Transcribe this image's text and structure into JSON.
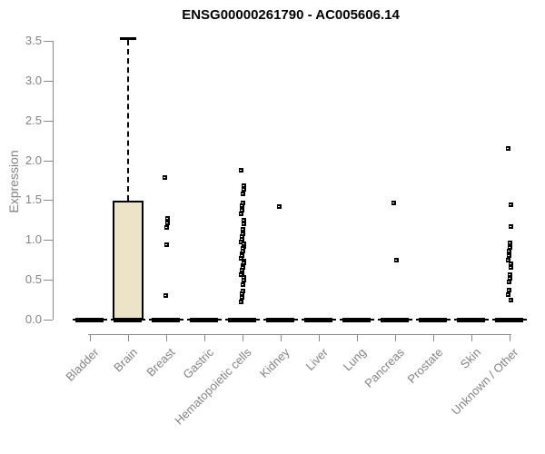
{
  "chart_data": {
    "type": "boxplot",
    "title": "ENSG00000261790 - AC005606.14",
    "ylabel": "Expression",
    "ylim": [
      0,
      3.5
    ],
    "yticks": [
      0.0,
      0.5,
      1.0,
      1.5,
      2.0,
      2.5,
      3.0,
      3.5
    ],
    "categories": [
      "Bladder",
      "Brain",
      "Breast",
      "Gastric",
      "Hematopoietic cells",
      "Kidney",
      "Liver",
      "Lung",
      "Pancreas",
      "Prostate",
      "Skin",
      "Unknown / Other"
    ],
    "boxes": [
      {
        "category": "Bladder",
        "median": 0,
        "q1": 0,
        "q3": 0,
        "whisker_low": 0,
        "whisker_high": 0
      },
      {
        "category": "Brain",
        "median": 0,
        "q1": 0,
        "q3": 1.49,
        "whisker_low": 0,
        "whisker_high": 3.53
      },
      {
        "category": "Breast",
        "median": 0,
        "q1": 0,
        "q3": 0,
        "whisker_low": 0,
        "whisker_high": 0
      },
      {
        "category": "Gastric",
        "median": 0,
        "q1": 0,
        "q3": 0,
        "whisker_low": 0,
        "whisker_high": 0
      },
      {
        "category": "Hematopoietic cells",
        "median": 0,
        "q1": 0,
        "q3": 0,
        "whisker_low": 0,
        "whisker_high": 0
      },
      {
        "category": "Kidney",
        "median": 0,
        "q1": 0,
        "q3": 0,
        "whisker_low": 0,
        "whisker_high": 0
      },
      {
        "category": "Liver",
        "median": 0,
        "q1": 0,
        "q3": 0,
        "whisker_low": 0,
        "whisker_high": 0
      },
      {
        "category": "Lung",
        "median": 0,
        "q1": 0,
        "q3": 0,
        "whisker_low": 0,
        "whisker_high": 0
      },
      {
        "category": "Pancreas",
        "median": 0,
        "q1": 0,
        "q3": 0,
        "whisker_low": 0,
        "whisker_high": 0
      },
      {
        "category": "Prostate",
        "median": 0,
        "q1": 0,
        "q3": 0,
        "whisker_low": 0,
        "whisker_high": 0
      },
      {
        "category": "Skin",
        "median": 0,
        "q1": 0,
        "q3": 0,
        "whisker_low": 0,
        "whisker_high": 0
      },
      {
        "category": "Unknown / Other",
        "median": 0,
        "q1": 0,
        "q3": 0,
        "whisker_low": 0,
        "whisker_high": 0
      }
    ],
    "points": {
      "Breast": [
        1.79,
        1.27,
        1.21,
        1.16,
        0.94,
        0.3
      ],
      "Hematopoietic cells": [
        1.88,
        1.68,
        1.64,
        1.58,
        1.47,
        1.43,
        1.37,
        1.33,
        1.25,
        1.2,
        1.14,
        1.08,
        1.04,
        1.01,
        0.98,
        0.95,
        0.92,
        0.89,
        0.86,
        0.83,
        0.8,
        0.77,
        0.74,
        0.71,
        0.68,
        0.65,
        0.62,
        0.59,
        0.56,
        0.53,
        0.5,
        0.44,
        0.36,
        0.32,
        0.28,
        0.22
      ],
      "Kidney": [
        1.42
      ],
      "Pancreas": [
        1.47,
        0.75
      ],
      "Unknown / Other": [
        2.15,
        1.44,
        1.17,
        0.96,
        0.91,
        0.86,
        0.8,
        0.75,
        0.7,
        0.66,
        0.57,
        0.52,
        0.47,
        0.37,
        0.31,
        0.25
      ]
    },
    "colors": {
      "box_fill": "#ede4c8",
      "box_border": "#000000",
      "axis": "#898989",
      "tick_text": "#838383",
      "title_text": "#000000",
      "point": "#000000"
    },
    "layout_hints": {
      "grid": false,
      "legend": "none",
      "x_labels_rotated_deg": 45
    }
  }
}
